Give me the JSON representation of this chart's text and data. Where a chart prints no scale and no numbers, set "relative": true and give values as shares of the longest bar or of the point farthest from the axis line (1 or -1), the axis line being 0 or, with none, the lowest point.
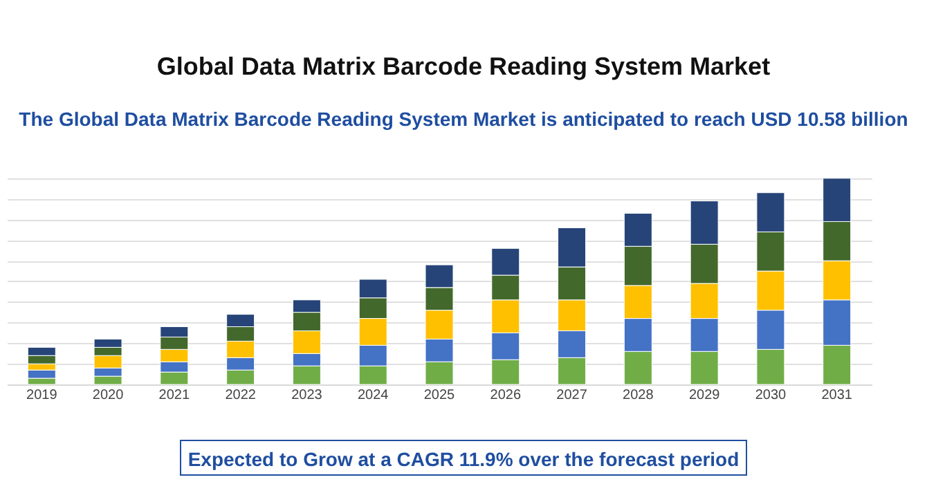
{
  "chart_data": {
    "type": "bar",
    "title": "Global Data Matrix Barcode Reading System Market",
    "subtitle": "The Global Data Matrix Barcode Reading System Market is anticipated to reach USD 10.58 billion",
    "annotations": [
      "Expected to Grow at a CAGR 11.9% over the forecast period"
    ],
    "categories": [
      "2019",
      "2020",
      "2021",
      "2022",
      "2023",
      "2024",
      "2025",
      "2026",
      "2027",
      "2028",
      "2029",
      "2030",
      "2031"
    ],
    "stacked": true,
    "relative": true,
    "grid": "y",
    "legend": false,
    "series": [
      {
        "color": "#70ad47",
        "values": [
          0.03,
          0.04,
          0.06,
          0.07,
          0.09,
          0.09,
          0.11,
          0.12,
          0.13,
          0.16,
          0.16,
          0.17,
          0.19
        ]
      },
      {
        "color": "#4472c4",
        "values": [
          0.04,
          0.04,
          0.05,
          0.06,
          0.06,
          0.1,
          0.11,
          0.13,
          0.13,
          0.16,
          0.16,
          0.19,
          0.22
        ]
      },
      {
        "color": "#ffc000",
        "values": [
          0.03,
          0.06,
          0.06,
          0.08,
          0.11,
          0.13,
          0.14,
          0.16,
          0.15,
          0.16,
          0.17,
          0.19,
          0.19
        ]
      },
      {
        "color": "#43682b",
        "values": [
          0.04,
          0.04,
          0.06,
          0.07,
          0.09,
          0.1,
          0.11,
          0.12,
          0.16,
          0.19,
          0.19,
          0.19,
          0.19
        ]
      },
      {
        "color": "#264478",
        "values": [
          0.04,
          0.04,
          0.05,
          0.06,
          0.06,
          0.09,
          0.11,
          0.13,
          0.19,
          0.16,
          0.21,
          0.19,
          0.21
        ]
      }
    ]
  }
}
